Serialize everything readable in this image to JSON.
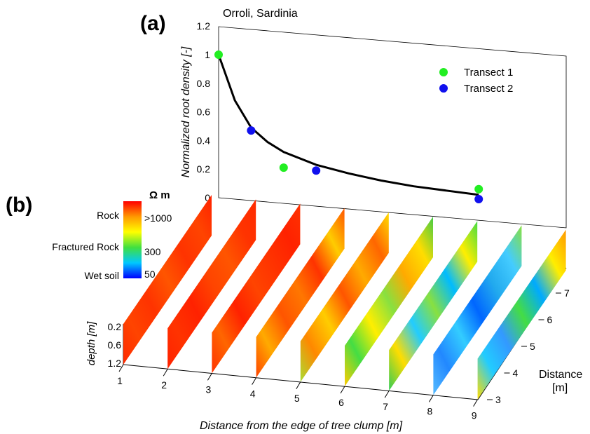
{
  "panel_labels": {
    "a": "(a)",
    "b": "(b)"
  },
  "chart_data": [
    {
      "type": "scatter",
      "panel": "(a)",
      "title": "Orroli, Sardinia",
      "xlabel": "Distance from the edge of tree clump  [m]",
      "ylabel": "Normalized root density  [-]",
      "x_ticks": [
        "1",
        "2",
        "3",
        "4",
        "5",
        "6",
        "7",
        "8",
        "9"
      ],
      "y_ticks": [
        "0",
        "0.2",
        "0.4",
        "0.6",
        "0.8",
        "1",
        "1.2"
      ],
      "ylim": [
        0,
        1.2
      ],
      "xlim": [
        1,
        9
      ],
      "legend_position": "top-right",
      "series": [
        {
          "name": "Transect 1",
          "color": "#22ee22",
          "x": [
            1,
            3,
            9
          ],
          "y": [
            1.0,
            0.21,
            0.06
          ]
        },
        {
          "name": "Transect 2",
          "color": "#1010ee",
          "x": [
            2,
            4,
            9
          ],
          "y": [
            0.47,
            0.19,
            -0.01
          ]
        }
      ],
      "fit_curve": {
        "color": "#000000",
        "x": [
          1,
          1.5,
          2,
          2.5,
          3,
          4,
          5,
          6,
          7,
          8,
          9
        ],
        "y": [
          1.0,
          0.68,
          0.49,
          0.39,
          0.32,
          0.23,
          0.17,
          0.12,
          0.08,
          0.05,
          0.02
        ]
      }
    },
    {
      "type": "heatmap",
      "panel": "(b)",
      "colorbar": {
        "unit": "Ω m",
        "values": [
          "50",
          "300",
          ">1000"
        ],
        "labels": [
          "Wet soil",
          "Fractured Rock",
          "Rock"
        ],
        "colors": [
          "#0000ff",
          "#00c8ff",
          "#40e040",
          "#ffff00",
          "#ff9900",
          "#ff0000"
        ]
      },
      "x_ticks": [
        "1",
        "2",
        "3",
        "4",
        "5",
        "6",
        "7",
        "8",
        "9"
      ],
      "xlabel": "Distance from the edge of tree clump  [m]",
      "depth_label": "depth  [m]",
      "depth_ticks": [
        "0.2",
        "0.6",
        "1.2"
      ],
      "distance_label": "Distance",
      "distance_unit": "[m]",
      "distance_ticks": [
        "3",
        "4",
        "5",
        "6",
        "7"
      ],
      "transects": [
        {
          "x": 1,
          "profile": [
            "#ff2a00",
            "#ff4400",
            "#ff3300",
            "#ff5500",
            "#ff3300",
            "#ff4400",
            "#ff2200"
          ]
        },
        {
          "x": 2,
          "profile": [
            "#ff2200",
            "#ff3300",
            "#ff2200",
            "#ff4400",
            "#ff5500",
            "#ff3300",
            "#ff2a00"
          ]
        },
        {
          "x": 3,
          "profile": [
            "#ff3300",
            "#ff6600",
            "#ff2200",
            "#ff4400",
            "#ff3300",
            "#ff2200",
            "#ff3300"
          ]
        },
        {
          "x": 4,
          "profile": [
            "#ff4400",
            "#ffaa00",
            "#ff5500",
            "#ff7700",
            "#ff3300",
            "#ffcc00",
            "#ff5500"
          ]
        },
        {
          "x": 5,
          "profile": [
            "#aadd33",
            "#ff8800",
            "#ffcc00",
            "#ff5500",
            "#ffaa00",
            "#ff6600",
            "#ffdd00"
          ]
        },
        {
          "x": 6,
          "profile": [
            "#ffcc00",
            "#44dd44",
            "#ffee00",
            "#88e040",
            "#ffaa00",
            "#ffdd00",
            "#44cc44"
          ]
        },
        {
          "x": 7,
          "profile": [
            "#33cc55",
            "#ffdd00",
            "#22ccff",
            "#88e040",
            "#00bbff",
            "#ffee00",
            "#44dd44"
          ]
        },
        {
          "x": 8,
          "profile": [
            "#55bbff",
            "#2288ff",
            "#33ccff",
            "#0066ff",
            "#22aaee",
            "#44ccff",
            "#88e040"
          ]
        },
        {
          "x": 9,
          "profile": [
            "#ffdd00",
            "#22ccff",
            "#3399ff",
            "#44dd44",
            "#00aaff",
            "#ffee00",
            "#ff9900"
          ]
        }
      ]
    }
  ]
}
